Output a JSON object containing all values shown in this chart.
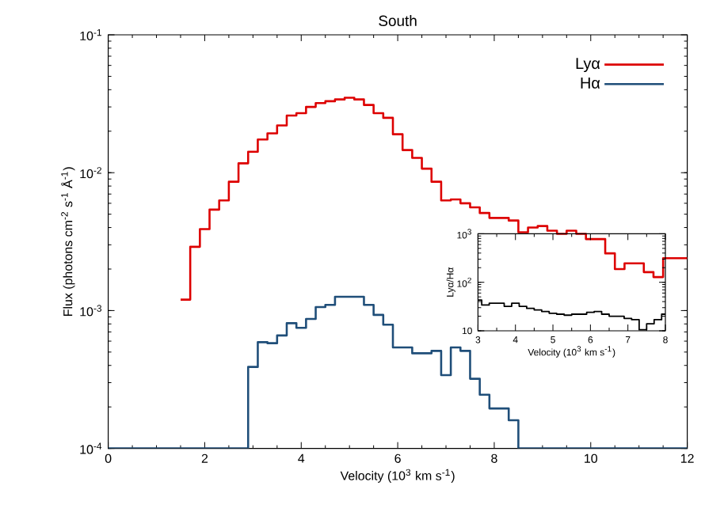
{
  "chart_data": [
    {
      "type": "step",
      "title": "South",
      "xlabel": "Velocity (10$^{3}$ km s$^{-1}$)",
      "ylabel": "Flux (photons cm$^{-2}$ s$^{-1}$ Å$^{-1}$)",
      "log": "y",
      "legend": "top right",
      "xlim": [
        0,
        12
      ],
      "ylim": [
        0.0001,
        0.1
      ],
      "xticks": [
        0,
        2,
        4,
        6,
        8,
        10,
        12
      ],
      "yticks": [
        {
          "value": 0.0001,
          "label": "10$^{-4}$"
        },
        {
          "value": 0.001,
          "label": "10$^{-3}$"
        },
        {
          "value": 0.01,
          "label": "10$^{-2}$"
        },
        {
          "value": 0.1,
          "label": "10$^{-1}$"
        }
      ],
      "series": [
        {
          "name": "Lyα",
          "color": "#dd0000",
          "x": [
            1.5,
            1.7,
            1.9,
            2.1,
            2.3,
            2.5,
            2.7,
            2.9,
            3.1,
            3.3,
            3.5,
            3.7,
            3.9,
            4.1,
            4.3,
            4.5,
            4.7,
            4.9,
            5.1,
            5.3,
            5.5,
            5.7,
            5.9,
            6.1,
            6.3,
            6.5,
            6.7,
            6.9,
            7.1,
            7.3,
            7.5,
            7.7,
            7.9,
            8.1,
            8.3,
            8.5,
            8.7,
            8.9,
            9.1,
            9.3,
            9.5,
            9.7,
            9.9,
            10.1,
            10.3,
            10.5,
            10.7,
            10.9,
            11.1,
            11.3,
            11.5,
            11.7,
            11.9,
            12
          ],
          "values": [
            0.0012,
            0.0029,
            0.0039,
            0.0054,
            0.0063,
            0.0086,
            0.0117,
            0.0142,
            0.0174,
            0.0193,
            0.022,
            0.026,
            0.027,
            0.03,
            0.032,
            0.033,
            0.034,
            0.035,
            0.034,
            0.031,
            0.027,
            0.025,
            0.019,
            0.0146,
            0.0128,
            0.0107,
            0.0086,
            0.0063,
            0.0064,
            0.006,
            0.0056,
            0.0051,
            0.0047,
            0.0047,
            0.0045,
            0.0037,
            0.004,
            0.0041,
            0.0038,
            0.0036,
            0.0038,
            0.0036,
            0.0033,
            0.0033,
            0.0026,
            0.002,
            0.0022,
            0.0022,
            0.0019,
            0.00175,
            0.0024,
            0.0024,
            0.0024,
            0.0024
          ]
        },
        {
          "name": "Hα",
          "color": "#1f4e79",
          "x": [
            0,
            2.9,
            3.1,
            3.3,
            3.5,
            3.7,
            3.9,
            4.1,
            4.3,
            4.5,
            4.7,
            4.9,
            5.1,
            5.3,
            5.5,
            5.7,
            5.9,
            6.1,
            6.3,
            6.5,
            6.7,
            6.9,
            7.1,
            7.3,
            7.5,
            7.7,
            7.9,
            8.1,
            8.3,
            8.5,
            12
          ],
          "values": [
            0.0001,
            0.00039,
            0.00059,
            0.00058,
            0.00066,
            0.00081,
            0.00075,
            0.00087,
            0.00106,
            0.0011,
            0.00126,
            0.00126,
            0.00126,
            0.0011,
            0.00093,
            0.00079,
            0.00054,
            0.00054,
            0.00049,
            0.00049,
            0.00051,
            0.00034,
            0.00054,
            0.00051,
            0.00032,
            0.000245,
            0.000195,
            0.000195,
            0.00016,
            0.0001,
            0.0001
          ]
        }
      ]
    },
    {
      "type": "step",
      "xlabel": "Velocity (10$^{3}$ km s$^{-1}$)",
      "ylabel": "Lyα/Hα",
      "log": "y",
      "xlim": [
        3,
        8
      ],
      "ylim": [
        10,
        1000
      ],
      "xticks": [
        3,
        4,
        5,
        6,
        7,
        8
      ],
      "yticks": [
        10,
        {
          "value": 100,
          "label": "10$^{2}$"
        },
        {
          "value": 1000,
          "label": "10$^{3}$"
        }
      ],
      "series": [
        {
          "color": "#000000",
          "x": [
            3,
            3.1,
            3.3,
            3.5,
            3.7,
            3.9,
            4.1,
            4.3,
            4.5,
            4.7,
            4.9,
            5.1,
            5.3,
            5.5,
            5.7,
            5.9,
            6.1,
            6.3,
            6.5,
            6.7,
            6.9,
            7.1,
            7.3,
            7.5,
            7.7,
            7.9,
            8
          ],
          "values": [
            43,
            34,
            37,
            37,
            32,
            37,
            32,
            29,
            27,
            25,
            23,
            22,
            21,
            22,
            22,
            24,
            25,
            22,
            20,
            20,
            18,
            17,
            10.5,
            14,
            17,
            22,
            22
          ]
        }
      ]
    }
  ]
}
